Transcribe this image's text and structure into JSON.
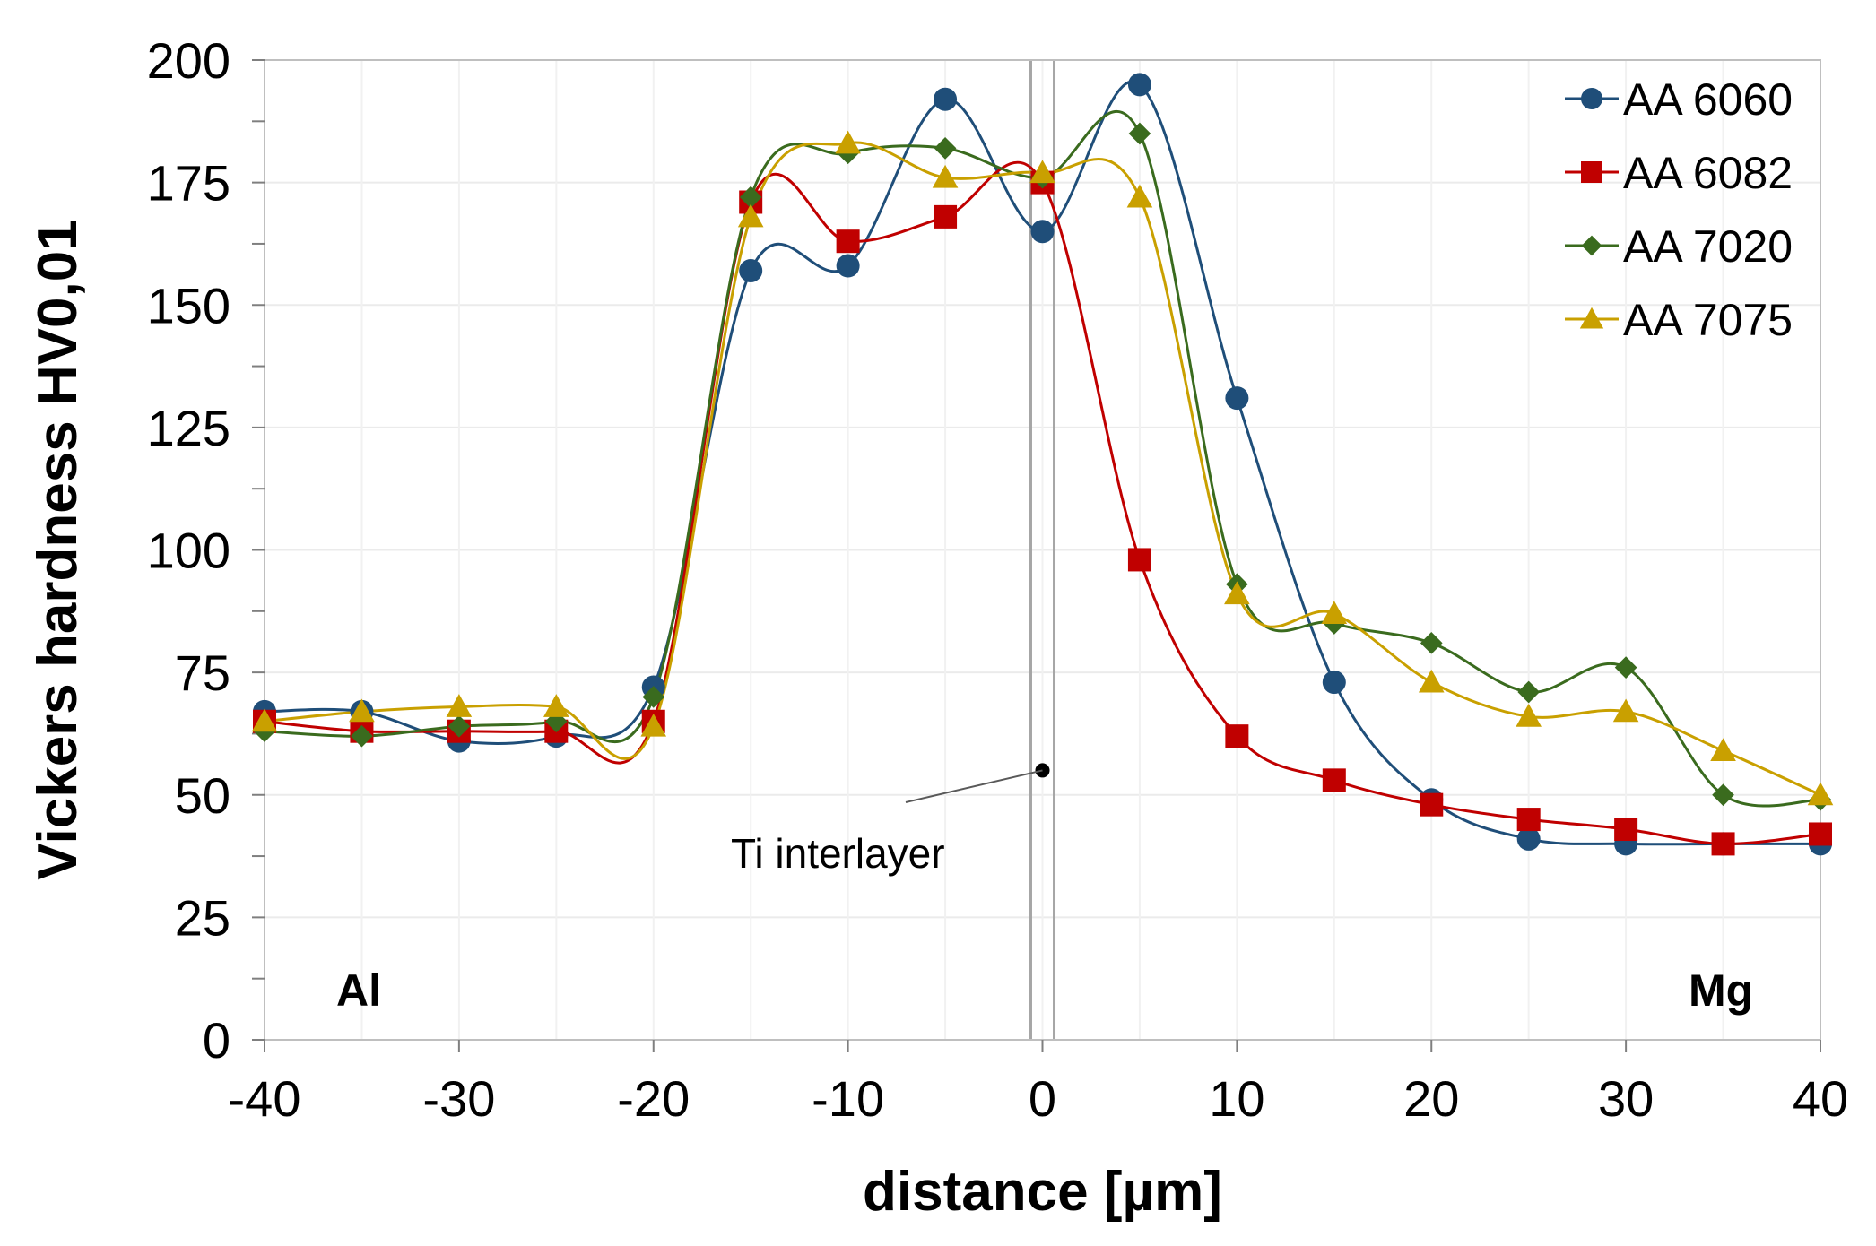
{
  "chart_data": {
    "type": "line",
    "title": "",
    "xlabel": "distance [µm]",
    "ylabel": "Vickers hardness HV0,01",
    "xlim": [
      -40,
      40
    ],
    "ylim": [
      0,
      200
    ],
    "x_ticks": [
      -40,
      -30,
      -20,
      -10,
      0,
      10,
      20,
      30,
      40
    ],
    "y_ticks": [
      0,
      25,
      50,
      75,
      100,
      125,
      150,
      175,
      200
    ],
    "x_tick_labels": [
      "-40",
      "-30",
      "-20",
      "-10",
      "0",
      "10",
      "20",
      "30",
      "40"
    ],
    "y_tick_labels": [
      "0",
      "25",
      "50",
      "75",
      "100",
      "125",
      "150",
      "175",
      "200"
    ],
    "grid": true,
    "legend_position": "top-right",
    "x": [
      -40,
      -35,
      -30,
      -25,
      -20,
      -15,
      -10,
      -5,
      0,
      5,
      10,
      15,
      20,
      25,
      30,
      35,
      40
    ],
    "series": [
      {
        "name": "AA 6060",
        "color": "#1f4e79",
        "marker": "circle",
        "values": [
          67,
          67,
          61,
          62,
          72,
          157,
          158,
          192,
          165,
          195,
          131,
          73,
          49,
          41,
          40,
          40,
          40
        ]
      },
      {
        "name": "AA 6082",
        "color": "#c00000",
        "marker": "square",
        "values": [
          65,
          63,
          63,
          63,
          65,
          171,
          163,
          168,
          175,
          98,
          62,
          53,
          48,
          45,
          43,
          40,
          42
        ]
      },
      {
        "name": "AA 7020",
        "color": "#3a6b1e",
        "marker": "diamond",
        "values": [
          63,
          62,
          64,
          65,
          70,
          172,
          181,
          182,
          176,
          185,
          93,
          85,
          81,
          71,
          76,
          50,
          49
        ]
      },
      {
        "name": "AA 7075",
        "color": "#c9a000",
        "marker": "triangle",
        "values": [
          65,
          67,
          68,
          68,
          64,
          168,
          183,
          176,
          177,
          172,
          91,
          87,
          73,
          66,
          67,
          59,
          50
        ]
      }
    ],
    "annotations": [
      {
        "text": "Ti interlayer",
        "point": [
          0,
          55
        ]
      },
      {
        "text": "Al",
        "anchor": "bottom-left"
      },
      {
        "text": "Mg",
        "anchor": "bottom-right"
      }
    ]
  }
}
